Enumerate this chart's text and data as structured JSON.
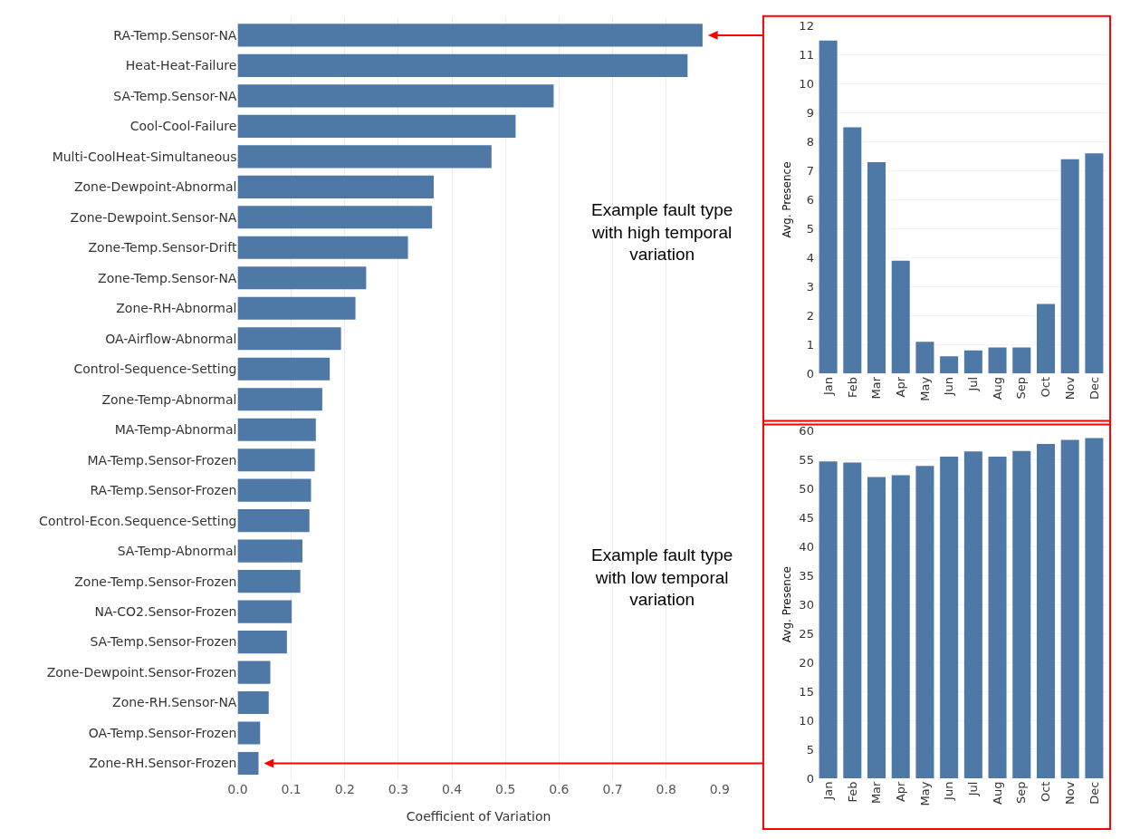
{
  "chart_data": [
    {
      "type": "bar",
      "orientation": "horizontal",
      "xlabel": "Coefficient of Variation",
      "categories": [
        "RA-Temp.Sensor-NA",
        "Heat-Heat-Failure",
        "SA-Temp.Sensor-NA",
        "Cool-Cool-Failure",
        "Multi-CoolHeat-Simultaneous",
        "Zone-Dewpoint-Abnormal",
        "Zone-Dewpoint.Sensor-NA",
        "Zone-Temp.Sensor-Drift",
        "Zone-Temp.Sensor-NA",
        "Zone-RH-Abnormal",
        "OA-Airflow-Abnormal",
        "Control-Sequence-Setting",
        "Zone-Temp-Abnormal",
        "MA-Temp-Abnormal",
        "MA-Temp.Sensor-Frozen",
        "RA-Temp.Sensor-Frozen",
        "Control-Econ.Sequence-Setting",
        "SA-Temp-Abnormal",
        "Zone-Temp.Sensor-Frozen",
        "NA-CO2.Sensor-Frozen",
        "SA-Temp.Sensor-Frozen",
        "Zone-Dewpoint.Sensor-Frozen",
        "Zone-RH.Sensor-NA",
        "OA-Temp.Sensor-Frozen",
        "Zone-RH.Sensor-Frozen"
      ],
      "values": [
        0.868,
        0.84,
        0.59,
        0.519,
        0.474,
        0.366,
        0.363,
        0.318,
        0.24,
        0.22,
        0.193,
        0.172,
        0.158,
        0.146,
        0.144,
        0.137,
        0.134,
        0.121,
        0.117,
        0.101,
        0.092,
        0.061,
        0.058,
        0.042,
        0.039
      ],
      "color": "#4e79a7",
      "xlim": [
        0,
        0.9
      ],
      "xticks": [
        {
          "value": 0,
          "label": "0.0"
        },
        0.1,
        0.2,
        0.3,
        0.4,
        0.5,
        0.6,
        0.7,
        0.8,
        0.9
      ],
      "grid": "x",
      "annotations": [
        "Example fault type with high temporal variation",
        "Example fault type with low temporal variation"
      ]
    },
    {
      "type": "bar",
      "ylabel": "Avg. Presence",
      "categories": [
        "Jan",
        "Feb",
        "Mar",
        "Apr",
        "May",
        "Jun",
        "Jul",
        "Aug",
        "Sep",
        "Oct",
        "Nov",
        "Dec"
      ],
      "values": [
        11.5,
        8.5,
        7.3,
        3.9,
        1.1,
        0.6,
        0.8,
        0.9,
        0.9,
        2.4,
        7.4,
        7.6
      ],
      "color": "#4e79a7",
      "ylim": [
        0,
        12
      ],
      "yticks": [
        0,
        1,
        2,
        3,
        4,
        5,
        6,
        7,
        8,
        9,
        10,
        11,
        12
      ],
      "grid": "y"
    },
    {
      "type": "bar",
      "ylabel": "Avg. Presence",
      "categories": [
        "Jan",
        "Feb",
        "Mar",
        "Apr",
        "May",
        "Jun",
        "Jul",
        "Aug",
        "Sep",
        "Oct",
        "Nov",
        "Dec"
      ],
      "values": [
        54.7,
        54.5,
        52.0,
        52.3,
        53.9,
        55.5,
        56.4,
        55.5,
        56.5,
        57.7,
        58.4,
        58.7
      ],
      "color": "#4e79a7",
      "ylim": [
        0,
        60
      ],
      "yticks": [
        0,
        5,
        10,
        15,
        20,
        25,
        30,
        35,
        40,
        45,
        50,
        55,
        60
      ],
      "grid": "y"
    }
  ]
}
